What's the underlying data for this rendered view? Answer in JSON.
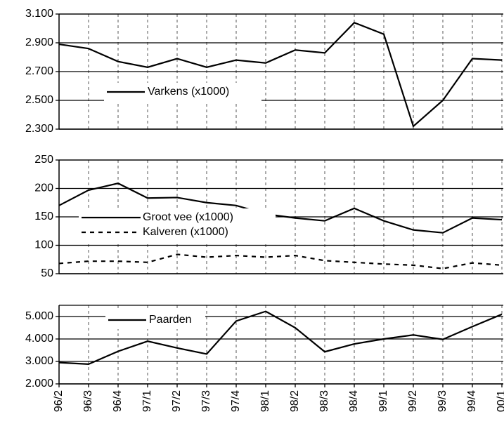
{
  "chart_data": [
    {
      "type": "line",
      "ylim": [
        2300,
        3100
      ],
      "yticks": [
        {
          "value": 2300,
          "label": "2.300"
        },
        {
          "value": 2500,
          "label": "2.500"
        },
        {
          "value": 2700,
          "label": "2.700"
        },
        {
          "value": 2900,
          "label": "2.900"
        },
        {
          "value": 3100,
          "label": "3.100"
        }
      ],
      "grid": true,
      "series": [
        {
          "name": "Varkens (x1000)",
          "color": "#000000",
          "style": "solid",
          "values": [
            2890,
            2860,
            2770,
            2730,
            2790,
            2730,
            2780,
            2760,
            2850,
            2830,
            3040,
            2960,
            2320,
            2500,
            2790,
            2780
          ]
        }
      ]
    },
    {
      "type": "line",
      "ylim": [
        50,
        250
      ],
      "yticks": [
        50,
        100,
        150,
        200,
        250
      ],
      "grid": true,
      "series": [
        {
          "name": "Groot vee (x1000)",
          "color": "#000000",
          "style": "solid",
          "values": [
            170,
            197,
            209,
            183,
            184,
            175,
            170,
            155,
            148,
            143,
            165,
            143,
            127,
            122,
            148,
            145
          ]
        },
        {
          "name": "Kalveren (x1000)",
          "color": "#000000",
          "style": "dashed",
          "values": [
            68,
            72,
            72,
            70,
            84,
            79,
            82,
            79,
            82,
            73,
            70,
            67,
            65,
            59,
            69,
            65
          ]
        }
      ]
    },
    {
      "type": "line",
      "ylim": [
        2000,
        5500
      ],
      "yticks": [
        {
          "value": 2000,
          "label": "2.000"
        },
        {
          "value": 3000,
          "label": "3.000"
        },
        {
          "value": 4000,
          "label": "4.000"
        },
        {
          "value": 5000,
          "label": "5.000"
        }
      ],
      "grid": true,
      "categories": [
        "96/2",
        "96/3",
        "96/4",
        "97/1",
        "97/2",
        "97/3",
        "97/4",
        "98/1",
        "98/2",
        "98/3",
        "98/4",
        "99/1",
        "99/2",
        "99/3",
        "99/4",
        "00/1"
      ],
      "series": [
        {
          "name": "Paarden",
          "color": "#000000",
          "style": "solid",
          "values": [
            2950,
            2880,
            3450,
            3900,
            3600,
            3330,
            4800,
            5230,
            4500,
            3430,
            3780,
            4000,
            4180,
            3980,
            4550,
            5100
          ]
        }
      ]
    }
  ]
}
